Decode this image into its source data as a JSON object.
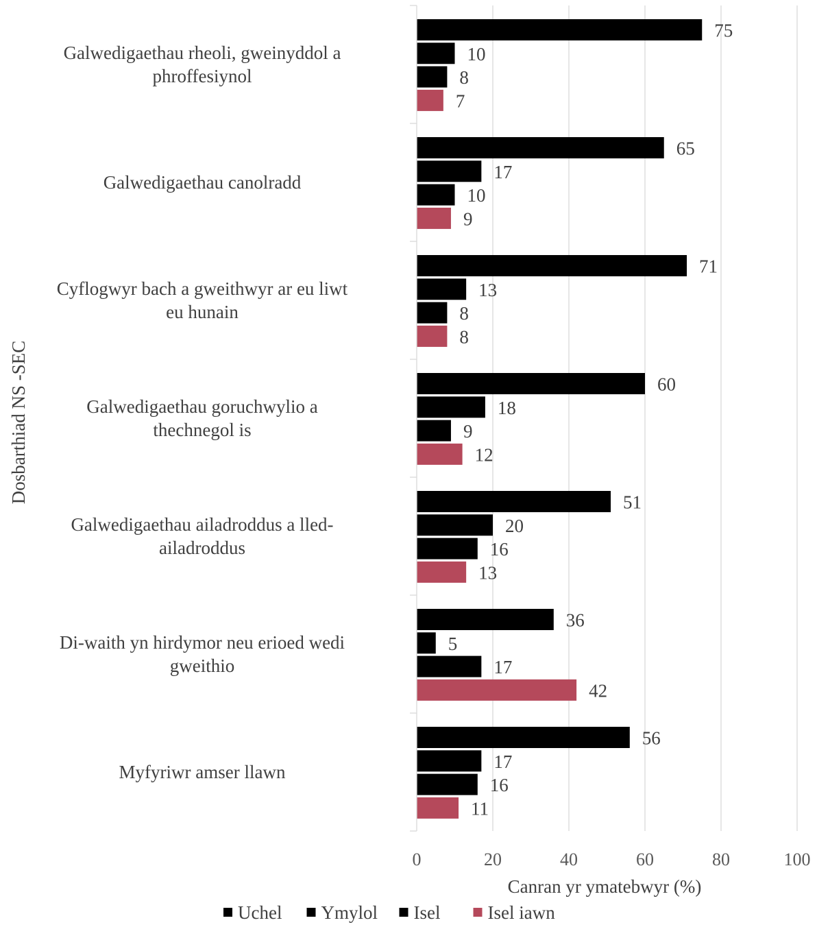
{
  "chart_data": {
    "type": "bar",
    "orientation": "horizontal",
    "ylabel": "Dosbarthiad NS   -SEC",
    "xlabel": "Canran yr   ymatebwyr  (%)",
    "xlim": [
      0,
      100
    ],
    "xticks": [
      "0",
      "20",
      "40",
      "60",
      "80",
      "100"
    ],
    "grid": true,
    "legend_position": "bottom",
    "categories": [
      [
        "Galwedigaethau rheoli, gweinyddol a",
        "phroffesiynol"
      ],
      [
        "Galwedigaethau canolradd"
      ],
      [
        "Cyflogwyr bach a gweithwyr ar eu liwt",
        "eu hunain"
      ],
      [
        "Galwedigaethau goruchwylio a",
        "thechnegol is"
      ],
      [
        "Galwedigaethau ailadroddus a lled-",
        "ailadroddus"
      ],
      [
        "Di-waith yn hirdymor neu erioed wedi",
        "gweithio"
      ],
      [
        "Myfyriwr amser llawn"
      ]
    ],
    "series": [
      {
        "name": "Uchel",
        "color": "#000000",
        "values": [
          75,
          65,
          71,
          60,
          51,
          36,
          56
        ]
      },
      {
        "name": "Ymylol",
        "color": "#000000",
        "values": [
          10,
          17,
          13,
          18,
          20,
          5,
          17
        ]
      },
      {
        "name": "Isel",
        "color": "#000000",
        "values": [
          8,
          10,
          8,
          9,
          16,
          17,
          16
        ]
      },
      {
        "name": "Isel iawn",
        "color": "#B5495B",
        "values": [
          7,
          9,
          8,
          12,
          13,
          42,
          11
        ]
      }
    ]
  }
}
